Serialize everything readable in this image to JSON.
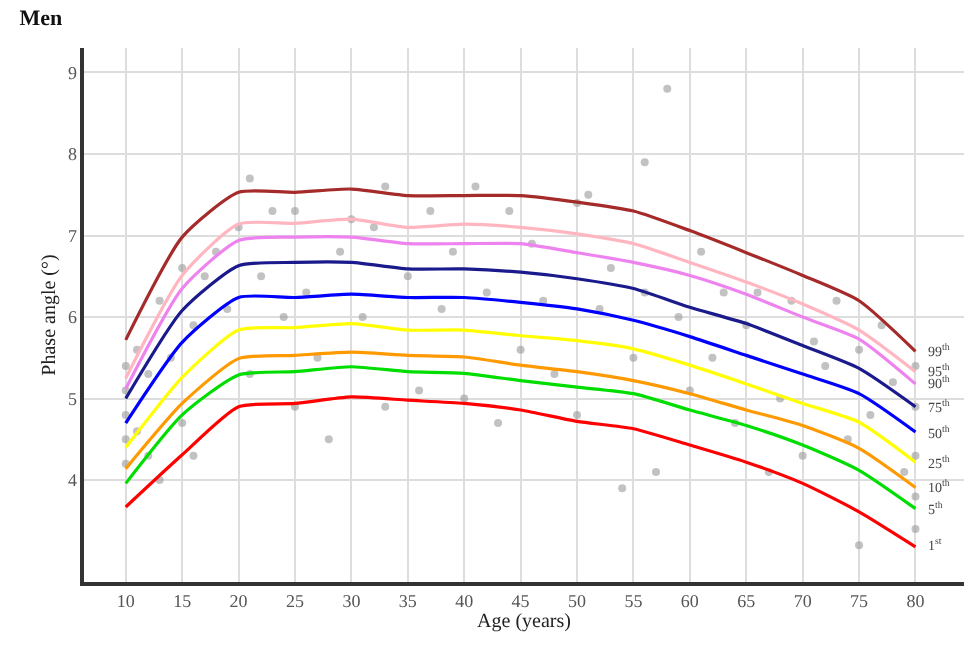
{
  "chart_data": {
    "type": "line",
    "title": "Men",
    "xlabel": "Age (years)",
    "ylabel": "Phase angle (°)",
    "xlim": [
      6.3,
      84.3
    ],
    "xticks": [
      10,
      15,
      20,
      25,
      30,
      35,
      40,
      45,
      50,
      55,
      60,
      65,
      70,
      75,
      80
    ],
    "ylim": [
      2.75,
      9.3
    ],
    "yticks": [
      4,
      5,
      6,
      7,
      8,
      9
    ],
    "grid": true,
    "legend": false,
    "marker": "none",
    "line_style": "solid",
    "x": [
      10,
      15,
      20,
      25,
      30,
      35,
      40,
      45,
      50,
      55,
      60,
      65,
      70,
      75,
      80
    ],
    "series": [
      {
        "type": "scatter",
        "marker": "circle",
        "color": "#999999",
        "x": [
          10,
          10,
          10,
          10,
          10,
          11,
          11,
          12,
          12,
          13,
          13,
          14,
          15,
          15,
          16,
          16,
          17,
          18,
          19,
          20,
          21,
          21,
          22,
          23,
          24,
          25,
          25,
          26,
          27,
          28,
          29,
          30,
          31,
          32,
          33,
          33,
          35,
          36,
          37,
          38,
          39,
          40,
          41,
          42,
          43,
          44,
          45,
          46,
          47,
          48,
          50,
          50,
          51,
          52,
          53,
          54,
          55,
          56,
          56,
          57,
          58,
          59,
          60,
          61,
          62,
          63,
          64,
          65,
          66,
          67,
          68,
          69,
          70,
          71,
          72,
          73,
          74,
          75,
          75,
          76,
          77,
          78,
          79,
          80,
          80,
          80,
          80,
          80
        ],
        "values": [
          5.4,
          5.1,
          4.8,
          4.5,
          4.2,
          5.6,
          4.6,
          5.3,
          4.3,
          6.2,
          4.0,
          5.5,
          6.6,
          4.7,
          5.9,
          4.3,
          6.5,
          6.8,
          6.1,
          7.1,
          7.7,
          5.3,
          6.5,
          7.3,
          6.0,
          7.3,
          4.9,
          6.3,
          5.5,
          4.5,
          6.8,
          7.2,
          6.0,
          7.1,
          7.6,
          4.9,
          6.5,
          5.1,
          7.3,
          6.1,
          6.8,
          5.0,
          7.6,
          6.3,
          4.7,
          7.3,
          5.6,
          6.9,
          6.2,
          5.3,
          7.4,
          4.8,
          7.5,
          6.1,
          6.6,
          3.9,
          5.5,
          7.9,
          6.3,
          4.1,
          8.8,
          6.0,
          5.1,
          6.8,
          5.5,
          6.3,
          4.7,
          5.9,
          6.3,
          4.1,
          5.0,
          6.2,
          4.3,
          5.7,
          5.4,
          6.2,
          4.5,
          5.6,
          3.2,
          4.8,
          5.9,
          5.2,
          4.1,
          5.4,
          4.9,
          4.3,
          3.8,
          3.4
        ]
      },
      {
        "name": "99$^{th}$",
        "color": "#a52a2a",
        "values": [
          5.72,
          6.98,
          7.53,
          7.53,
          7.57,
          7.49,
          7.49,
          7.49,
          7.41,
          7.3,
          7.06,
          6.79,
          6.51,
          6.2,
          5.58
        ]
      },
      {
        "name": "95$^{th}$",
        "color": "#ffb6c1",
        "values": [
          5.25,
          6.51,
          7.14,
          7.15,
          7.2,
          7.1,
          7.14,
          7.1,
          7.02,
          6.9,
          6.67,
          6.43,
          6.16,
          5.84,
          5.33
        ]
      },
      {
        "name": "90$^{th}$",
        "color": "#ee82ee",
        "values": [
          5.12,
          6.35,
          6.94,
          6.98,
          6.98,
          6.9,
          6.9,
          6.9,
          6.79,
          6.67,
          6.51,
          6.28,
          6.0,
          5.73,
          5.18
        ]
      },
      {
        "name": "75$^{th}$",
        "color": "#1a1a8c",
        "values": [
          5.0,
          6.08,
          6.63,
          6.67,
          6.67,
          6.59,
          6.59,
          6.55,
          6.47,
          6.35,
          6.12,
          5.92,
          5.65,
          5.37,
          4.9
        ]
      },
      {
        "name": "50$^{th}$",
        "color": "#0000ff",
        "values": [
          4.7,
          5.69,
          6.24,
          6.24,
          6.28,
          6.24,
          6.24,
          6.18,
          6.1,
          5.96,
          5.76,
          5.53,
          5.3,
          5.06,
          4.59
        ]
      },
      {
        "name": "25$^{th}$",
        "color": "#ffff00",
        "values": [
          4.4,
          5.26,
          5.84,
          5.87,
          5.92,
          5.84,
          5.84,
          5.77,
          5.71,
          5.61,
          5.41,
          5.18,
          4.94,
          4.71,
          4.22
        ]
      },
      {
        "name": "10$^{th}$",
        "color": "#ff9900",
        "values": [
          4.14,
          4.94,
          5.49,
          5.53,
          5.57,
          5.53,
          5.51,
          5.41,
          5.33,
          5.22,
          5.06,
          4.86,
          4.67,
          4.39,
          3.91
        ]
      },
      {
        "name": "5$^{th}$",
        "color": "#00dd00",
        "values": [
          3.96,
          4.8,
          5.29,
          5.33,
          5.39,
          5.33,
          5.31,
          5.22,
          5.14,
          5.06,
          4.86,
          4.67,
          4.43,
          4.12,
          3.65
        ]
      },
      {
        "name": "1$^{st}$",
        "color": "#ff0000",
        "values": [
          3.67,
          4.31,
          4.9,
          4.94,
          5.02,
          4.98,
          4.94,
          4.86,
          4.72,
          4.63,
          4.43,
          4.22,
          3.96,
          3.61,
          3.18
        ]
      }
    ]
  }
}
